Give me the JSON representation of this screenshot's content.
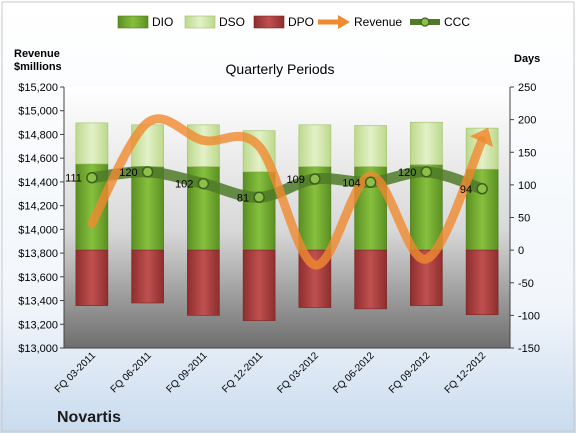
{
  "brand": "Novartis",
  "colors": {
    "dio": "#70a830",
    "dso": "#d2e8a8",
    "dpo": "#b04040",
    "revenue": "#f08a30",
    "ccc": "#4f7a28"
  },
  "chart_data": {
    "type": "bar",
    "title": "Quarterly Periods",
    "left_axis_title": [
      "Revenue",
      "$millions"
    ],
    "right_axis_title": "Days",
    "categories": [
      "FQ 03-2011",
      "FQ 06-2011",
      "FQ 09-2011",
      "FQ 12-2011",
      "FQ 03-2012",
      "FQ 06-2012",
      "FQ 09-2012",
      "FQ 12-2012"
    ],
    "left_ylim": [
      13000,
      15200
    ],
    "left_ticks": [
      "$13,000",
      "$13,200",
      "$13,400",
      "$13,600",
      "$13,800",
      "$14,000",
      "$14,200",
      "$14,400",
      "$14,600",
      "$14,800",
      "$15,000",
      "$15,200"
    ],
    "right_ylim": [
      -150,
      250
    ],
    "right_ticks": [
      "-150",
      "-100",
      "-50",
      "0",
      "50",
      "100",
      "150",
      "200",
      "250"
    ],
    "legend": [
      "DIO",
      "DSO",
      "DPO",
      "Revenue",
      "CCC"
    ],
    "series": [
      {
        "name": "DIO",
        "values": [
          132,
          128,
          128,
          120,
          128,
          128,
          131,
          124
        ]
      },
      {
        "name": "DSO",
        "values": [
          63,
          64,
          64,
          63,
          64,
          63,
          65,
          63
        ]
      },
      {
        "name": "DPO",
        "values": [
          -85,
          -81,
          -100,
          -108,
          -88,
          -90,
          -85,
          -99
        ]
      },
      {
        "name": "Revenue",
        "values": [
          14050,
          14900,
          14750,
          14700,
          13700,
          14450,
          13750,
          14750
        ]
      },
      {
        "name": "CCC",
        "values": [
          111,
          120,
          102,
          81,
          109,
          104,
          120,
          94
        ]
      }
    ],
    "ccc_labels": [
      "111",
      "120",
      "102",
      "81",
      "109",
      "104",
      "120",
      "94"
    ],
    "grid": false,
    "legend_position": "top"
  }
}
